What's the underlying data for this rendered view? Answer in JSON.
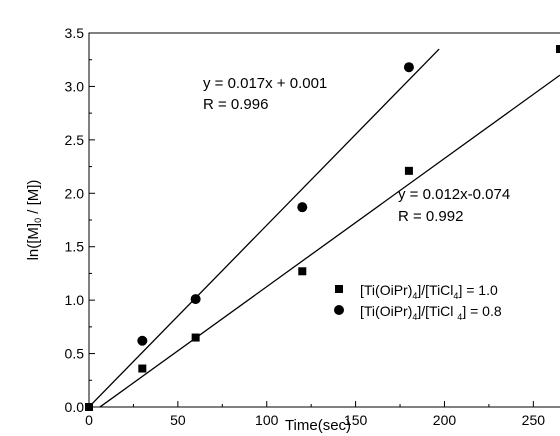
{
  "chart_data": {
    "type": "scatter",
    "xlabel": "Time(sec)",
    "ylabel_parts": [
      "ln([M]",
      "0",
      " / [M])"
    ],
    "xlim": [
      0,
      265
    ],
    "ylim": [
      0,
      3.5
    ],
    "x_ticks": [
      0,
      50,
      100,
      150,
      200,
      250
    ],
    "y_ticks": [
      0.0,
      0.5,
      1.0,
      1.5,
      2.0,
      2.5,
      3.0,
      3.5
    ],
    "y_tick_labels": [
      "0.0",
      "0.5",
      "1.0",
      "1.5",
      "2.0",
      "2.5",
      "3.0",
      "3.5"
    ],
    "grid": false,
    "legend_position": "bottom-right",
    "series": [
      {
        "name_parts": [
          "[Ti(OiPr)",
          "4",
          "]/[TiCl",
          "4",
          "] = 1.0"
        ],
        "marker": "square",
        "x": [
          0,
          30,
          60,
          120,
          180,
          265
        ],
        "y": [
          0.0,
          0.36,
          0.65,
          1.27,
          2.21,
          3.35
        ],
        "fit": {
          "slope": 0.012,
          "intercept": -0.074,
          "x_range": [
            6,
            265
          ]
        },
        "annotation": {
          "equation": "y = 0.012x-0.074",
          "r": "R = 0.992"
        }
      },
      {
        "name_parts": [
          "[Ti(OiPr)",
          "4",
          "]/[TiCl ",
          "4",
          "] = 0.8"
        ],
        "marker": "circle",
        "x": [
          30,
          60,
          120,
          180
        ],
        "y": [
          0.62,
          1.01,
          1.87,
          3.18
        ],
        "fit": {
          "slope": 0.017,
          "intercept": 0.001,
          "x_range": [
            0,
            197
          ]
        },
        "annotation": {
          "equation": "y = 0.017x + 0.001",
          "r": "R = 0.996"
        }
      }
    ]
  }
}
